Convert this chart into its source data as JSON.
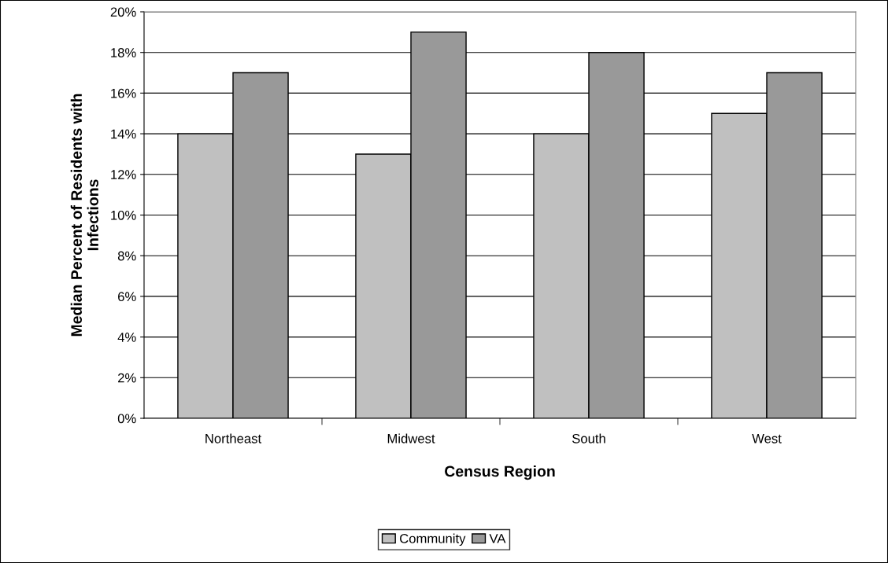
{
  "chart_data": {
    "type": "bar",
    "xlabel": "Census Region",
    "ylabel": "Median Percent of Residents with\nInfections",
    "categories": [
      "Northeast",
      "Midwest",
      "South",
      "West"
    ],
    "series": [
      {
        "name": "Community",
        "color": "#c0c0c0",
        "values": [
          14,
          13,
          14,
          15
        ]
      },
      {
        "name": "VA",
        "color": "#999999",
        "values": [
          17,
          19,
          18,
          17
        ]
      }
    ],
    "ylim": [
      0,
      20
    ],
    "yticks": [
      {
        "value": 0,
        "label": "0%"
      },
      {
        "value": 2,
        "label": "2%"
      },
      {
        "value": 4,
        "label": "4%"
      },
      {
        "value": 6,
        "label": "6%"
      },
      {
        "value": 8,
        "label": "8%"
      },
      {
        "value": 10,
        "label": "10%"
      },
      {
        "value": 12,
        "label": "12%"
      },
      {
        "value": 14,
        "label": "14%"
      },
      {
        "value": 16,
        "label": "16%"
      },
      {
        "value": 18,
        "label": "18%"
      },
      {
        "value": 20,
        "label": "20%"
      }
    ],
    "grid": "y",
    "legend": "bottom"
  }
}
